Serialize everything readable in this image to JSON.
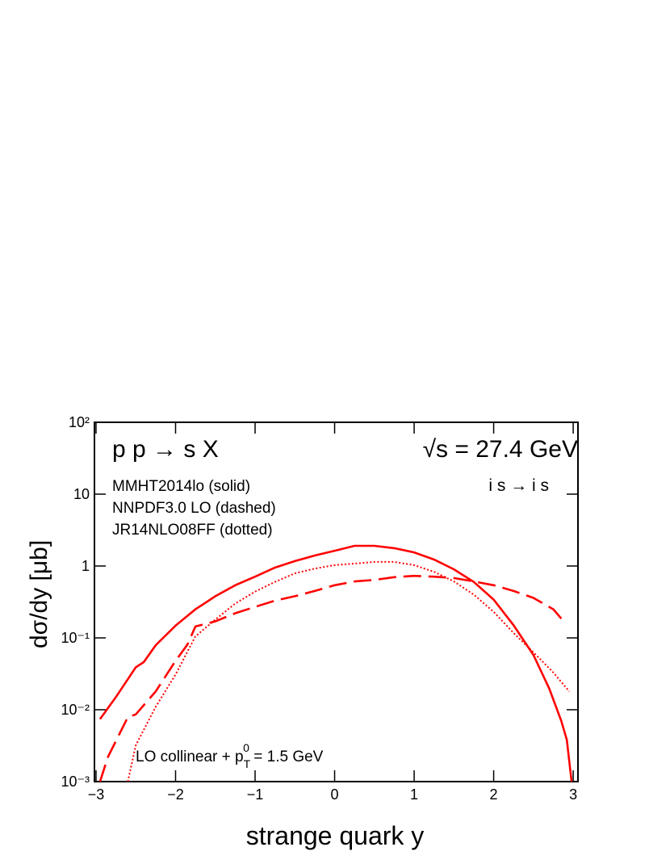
{
  "chart_data": {
    "type": "line",
    "log_y": true,
    "x_label": "strange quark y",
    "y_label": "dσ/dy     [μb]",
    "title": "p p → s  X",
    "energy": "√s = 27.4 GeV",
    "process": "i s → i s",
    "legend_notes": [
      "MMHT2014lo  (solid)",
      "NNPDF3.0 LO (dashed)",
      "JR14NLO08FF (dotted)"
    ],
    "annotation": [
      "LO collinear + p",
      "T",
      "0",
      " = 1.5 GeV"
    ],
    "xlim": [
      -3.02,
      3.06
    ],
    "ylim": [
      0.001,
      100
    ],
    "xticks": [
      {
        "value": -3,
        "label": "−3"
      },
      {
        "value": -2,
        "label": "−2"
      },
      {
        "value": -1,
        "label": "−1"
      },
      0,
      1,
      2,
      3
    ],
    "yticks": [
      {
        "value": 0.001,
        "label": "10⁻³"
      },
      {
        "value": 0.01,
        "label": "10⁻²"
      },
      {
        "value": 0.1,
        "label": "10⁻¹"
      },
      1,
      10,
      {
        "value": 100,
        "label": "10²"
      }
    ],
    "series": [
      {
        "name": "MMHT2014lo",
        "color": "#ff0000",
        "dash": "solid",
        "x": [
          -2.95,
          -2.75,
          -2.5,
          -2.4,
          -2.25,
          -2.0,
          -1.75,
          -1.5,
          -1.25,
          -1.0,
          -0.75,
          -0.5,
          -0.25,
          0,
          0.25,
          0.5,
          0.75,
          1.0,
          1.25,
          1.5,
          1.75,
          2.0,
          2.25,
          2.5,
          2.7,
          2.85,
          2.92,
          2.98
        ],
        "values": [
          0.0074,
          0.015,
          0.039,
          0.046,
          0.079,
          0.148,
          0.25,
          0.38,
          0.54,
          0.71,
          0.95,
          1.17,
          1.4,
          1.63,
          1.91,
          1.91,
          1.77,
          1.55,
          1.23,
          0.9,
          0.6,
          0.34,
          0.15,
          0.058,
          0.0196,
          0.007,
          0.0038,
          0.001
        ]
      },
      {
        "name": "NNPDF3.0 LO",
        "color": "#ff0000",
        "dash": "dashed",
        "x": [
          -2.95,
          -2.85,
          -2.6,
          -2.5,
          -2.25,
          -2.0,
          -1.85,
          -1.75,
          -1.5,
          -1.25,
          -1.0,
          -0.75,
          -0.5,
          -0.25,
          0,
          0.25,
          0.5,
          0.75,
          1.0,
          1.25,
          1.5,
          1.75,
          2.0,
          2.25,
          2.5,
          2.75,
          2.9
        ],
        "values": [
          0.001,
          0.0022,
          0.0079,
          0.0086,
          0.018,
          0.048,
          0.081,
          0.144,
          0.17,
          0.22,
          0.27,
          0.33,
          0.38,
          0.45,
          0.54,
          0.61,
          0.64,
          0.7,
          0.73,
          0.71,
          0.68,
          0.61,
          0.54,
          0.45,
          0.36,
          0.25,
          0.16
        ]
      },
      {
        "name": "JR14NLO08FF",
        "color": "#ff0000",
        "dash": "dotted",
        "x": [
          -2.6,
          -2.5,
          -2.25,
          -2.0,
          -1.75,
          -1.5,
          -1.25,
          -1.0,
          -0.75,
          -0.5,
          -0.25,
          0,
          0.25,
          0.5,
          0.75,
          1.0,
          1.25,
          1.5,
          1.75,
          2.0,
          2.25,
          2.5,
          2.75,
          2.95
        ],
        "values": [
          0.001,
          0.0032,
          0.011,
          0.031,
          0.105,
          0.18,
          0.3,
          0.44,
          0.6,
          0.79,
          0.92,
          1.03,
          1.08,
          1.14,
          1.14,
          1.03,
          0.83,
          0.61,
          0.4,
          0.23,
          0.117,
          0.063,
          0.033,
          0.018
        ]
      }
    ]
  }
}
